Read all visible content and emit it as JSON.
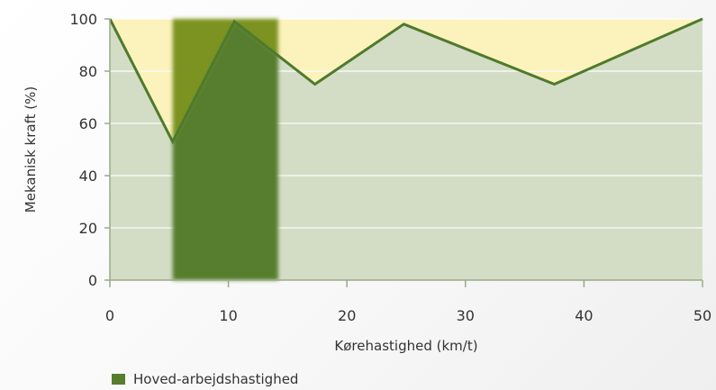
{
  "chart_data": {
    "type": "line",
    "xlabel": "Kørehastighed (km/t)",
    "ylabel": "Mekanisk kraft (%)",
    "xlim": [
      0,
      50
    ],
    "ylim": [
      0,
      100
    ],
    "x_ticks": [
      0,
      10,
      20,
      30,
      40,
      50
    ],
    "y_ticks": [
      0,
      20,
      40,
      60,
      80,
      100
    ],
    "grid": true,
    "series": [
      {
        "name": "",
        "x": [
          0,
          5.3,
          10.5,
          17.3,
          24.8,
          37.5,
          50
        ],
        "y": [
          100,
          53,
          99,
          75,
          98,
          75,
          100
        ]
      }
    ],
    "highlight_band": {
      "x_start": 5.3,
      "x_end": 14.2,
      "label": "Hoved-arbejdshastighed"
    },
    "legend": {
      "placement": "bottom-left",
      "entries": [
        "Hoved-arbejdshastighed"
      ]
    },
    "colors": {
      "area_fill": "#d3ddc6",
      "above_fill": "#fbf2bc",
      "line": "#4e7a2c",
      "band": "#567e2d",
      "band_over_yellow": "#7c9320",
      "grid": "#ffffff",
      "axis": "#9aaa8a",
      "text": "#333333"
    }
  }
}
